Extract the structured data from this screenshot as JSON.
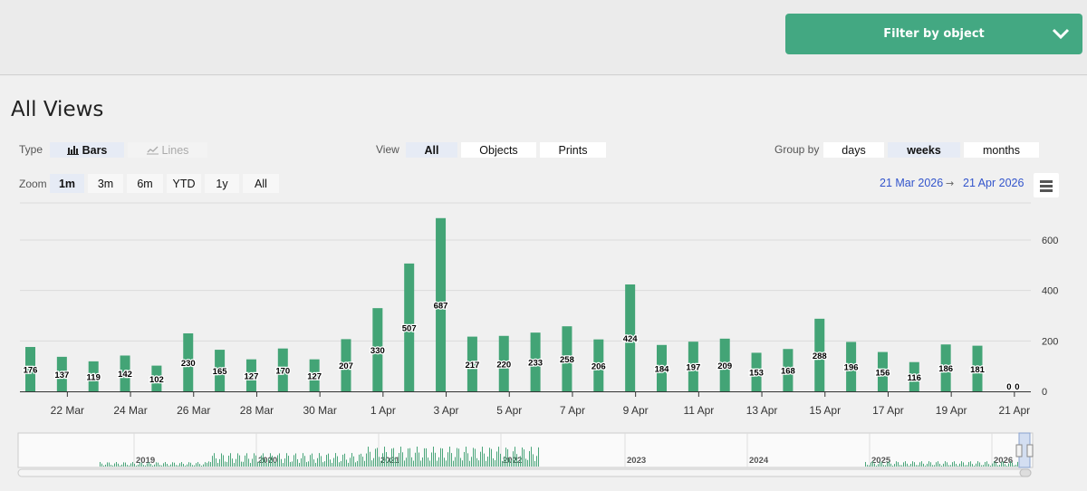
{
  "header": {
    "filter_label": "Filter by object"
  },
  "title": "All Views",
  "controls": {
    "type_label": "Type",
    "type_options": [
      {
        "label": "Bars",
        "selected": true
      },
      {
        "label": "Lines",
        "selected": false
      }
    ],
    "view_label": "View",
    "view_options": [
      {
        "label": "All",
        "selected": true
      },
      {
        "label": "Objects",
        "selected": false
      },
      {
        "label": "Prints",
        "selected": false
      }
    ],
    "group_label": "Group by",
    "group_options": [
      {
        "label": "days",
        "selected": false
      },
      {
        "label": "weeks",
        "selected": true
      },
      {
        "label": "months",
        "selected": false
      }
    ],
    "zoom_label": "Zoom",
    "zoom_options": [
      {
        "label": "1m",
        "selected": true
      },
      {
        "label": "3m",
        "selected": false
      },
      {
        "label": "6m",
        "selected": false
      },
      {
        "label": "YTD",
        "selected": false
      },
      {
        "label": "1y",
        "selected": false
      },
      {
        "label": "All",
        "selected": false
      }
    ],
    "date_from": "21 Mar 2026",
    "date_arrow": "→",
    "date_to": "21 Apr 2026"
  },
  "colors": {
    "bar": "#43a476",
    "accent": "#43a882",
    "date_link": "#3355cc"
  },
  "icons": {
    "filter": "chevron-down-icon",
    "bars": "bar-chart-icon",
    "lines": "line-chart-icon",
    "menu": "hamburger-menu-icon"
  },
  "chart_data": {
    "type": "bar",
    "x_dates_day_of_range": "21 Mar – 21 Apr",
    "categories": [
      "21 Mar",
      "22 Mar",
      "23 Mar",
      "24 Mar",
      "25 Mar",
      "26 Mar",
      "27 Mar",
      "28 Mar",
      "29 Mar",
      "30 Mar",
      "31 Mar",
      "1 Apr",
      "2 Apr",
      "3 Apr",
      "4 Apr",
      "5 Apr",
      "6 Apr",
      "7 Apr",
      "8 Apr",
      "9 Apr",
      "10 Apr",
      "11 Apr",
      "12 Apr",
      "13 Apr",
      "14 Apr",
      "15 Apr",
      "16 Apr",
      "17 Apr",
      "18 Apr",
      "19 Apr",
      "20 Apr",
      "21 Apr"
    ],
    "values": [
      176,
      137,
      119,
      142,
      102,
      230,
      165,
      127,
      170,
      127,
      207,
      330,
      507,
      687,
      217,
      220,
      233,
      258,
      206,
      424,
      184,
      197,
      209,
      153,
      168,
      288,
      196,
      156,
      116,
      186,
      181,
      0
    ],
    "extra_label_values": [
      0
    ],
    "x_tick_labels": [
      "22 Mar",
      "24 Mar",
      "26 Mar",
      "28 Mar",
      "30 Mar",
      "1 Apr",
      "3 Apr",
      "5 Apr",
      "7 Apr",
      "9 Apr",
      "11 Apr",
      "13 Apr",
      "15 Apr",
      "17 Apr",
      "19 Apr",
      "21 Apr"
    ],
    "y_tick_labels": [
      "0",
      "200",
      "400",
      "600"
    ],
    "ylim": [
      0,
      700
    ],
    "grid": true,
    "navigator": {
      "year_labels": [
        "2019",
        "2020",
        "2021",
        "2022",
        "2023",
        "2024",
        "2025",
        "2026"
      ]
    }
  }
}
